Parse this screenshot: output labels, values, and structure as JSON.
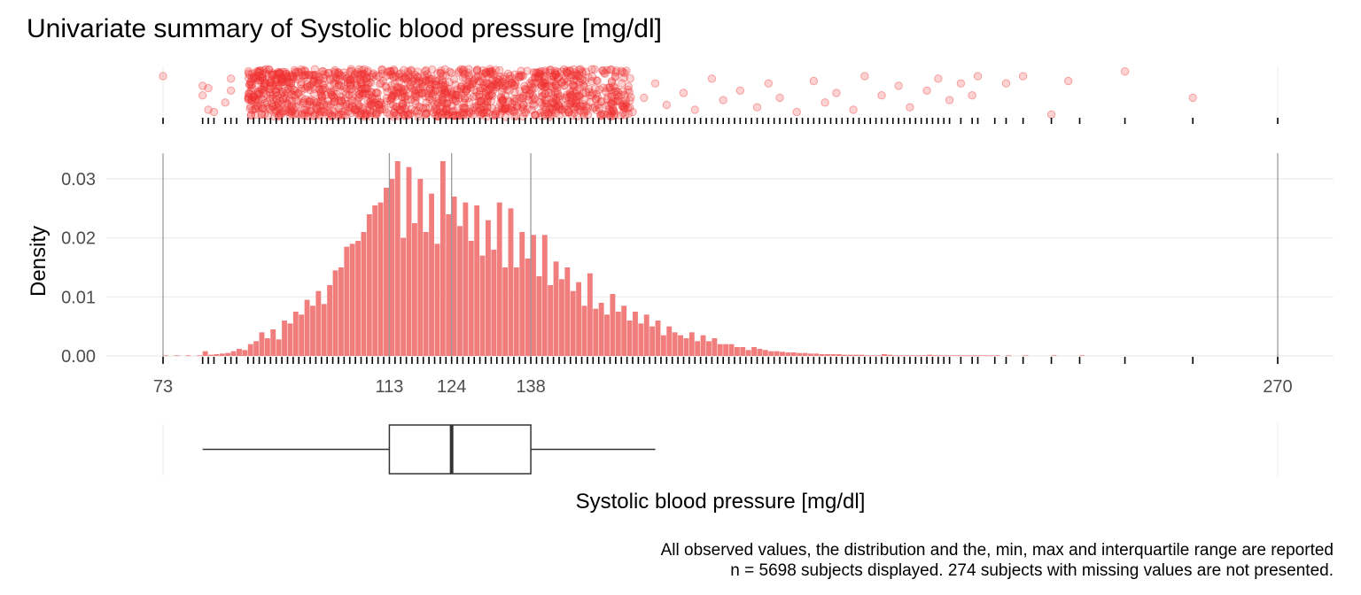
{
  "chart_data": {
    "type": "histogram",
    "title": "Univariate summary of Systolic blood pressure [mg/dl]",
    "xlabel": "Systolic blood pressure [mg/dl]",
    "ylabel": "Density",
    "xlim": [
      73,
      270
    ],
    "ylim": [
      0,
      0.033
    ],
    "y_ticks": [
      0.0,
      0.01,
      0.02,
      0.03
    ],
    "y_tick_labels": [
      "0.00",
      "0.01",
      "0.02",
      "0.03"
    ],
    "x_ticks": [
      73,
      113,
      124,
      138,
      270
    ],
    "x_tick_labels": [
      "73",
      "113",
      "124",
      "138",
      "270"
    ],
    "grid": true,
    "colors": {
      "bars": "#f27d7d",
      "points": "#f03030",
      "box": "#333333",
      "guide": "#9a9a9a"
    },
    "summary": {
      "min": 73,
      "q1": 113,
      "median": 124,
      "q3": 138,
      "max": 270,
      "whisker_low": 80,
      "whisker_high": 160
    },
    "bins": {
      "x": [
        73,
        75,
        77,
        79,
        80,
        81,
        82,
        83,
        84,
        85,
        86,
        87,
        88,
        89,
        90,
        91,
        92,
        93,
        94,
        95,
        96,
        97,
        98,
        99,
        100,
        101,
        102,
        103,
        104,
        105,
        106,
        107,
        108,
        109,
        110,
        111,
        112,
        113,
        114,
        115,
        116,
        117,
        118,
        119,
        120,
        121,
        122,
        123,
        124,
        125,
        126,
        127,
        128,
        129,
        130,
        131,
        132,
        133,
        134,
        135,
        136,
        137,
        138,
        139,
        140,
        141,
        142,
        143,
        144,
        145,
        146,
        147,
        148,
        149,
        150,
        151,
        152,
        153,
        154,
        155,
        156,
        157,
        158,
        159,
        160,
        161,
        162,
        163,
        164,
        165,
        166,
        167,
        168,
        169,
        170,
        171,
        172,
        173,
        174,
        175,
        176,
        177,
        178,
        179,
        180,
        181,
        182,
        183,
        184,
        185,
        186,
        187,
        188,
        189,
        190,
        191,
        192,
        193,
        194,
        195,
        196,
        197,
        198,
        199,
        200,
        201,
        202,
        203,
        204,
        205,
        206,
        207,
        208,
        209,
        210,
        211,
        212,
        213,
        214,
        215,
        216,
        217,
        218,
        219,
        220,
        222,
        225,
        230,
        235
      ],
      "density": [
        0.0001,
        0.0001,
        0.0001,
        0.0001,
        0.0008,
        0.0002,
        0.0003,
        0.0004,
        0.0005,
        0.0008,
        0.0012,
        0.001,
        0.002,
        0.0025,
        0.004,
        0.003,
        0.0045,
        0.0028,
        0.006,
        0.0055,
        0.0075,
        0.007,
        0.0095,
        0.0085,
        0.011,
        0.0088,
        0.012,
        0.0145,
        0.015,
        0.0185,
        0.019,
        0.0195,
        0.021,
        0.024,
        0.0255,
        0.026,
        0.0285,
        0.03,
        0.033,
        0.02,
        0.032,
        0.0225,
        0.03,
        0.021,
        0.0275,
        0.019,
        0.033,
        0.024,
        0.027,
        0.022,
        0.026,
        0.0195,
        0.0255,
        0.017,
        0.023,
        0.018,
        0.026,
        0.015,
        0.025,
        0.015,
        0.021,
        0.0165,
        0.0205,
        0.0135,
        0.0205,
        0.012,
        0.016,
        0.013,
        0.015,
        0.011,
        0.0125,
        0.0085,
        0.014,
        0.008,
        0.009,
        0.007,
        0.0105,
        0.0075,
        0.0085,
        0.006,
        0.0075,
        0.0055,
        0.007,
        0.005,
        0.006,
        0.0035,
        0.005,
        0.004,
        0.0035,
        0.003,
        0.004,
        0.0025,
        0.0035,
        0.0025,
        0.003,
        0.002,
        0.002,
        0.002,
        0.0015,
        0.0015,
        0.001,
        0.0015,
        0.0012,
        0.001,
        0.0008,
        0.0008,
        0.0007,
        0.0006,
        0.0006,
        0.0005,
        0.0005,
        0.0004,
        0.0004,
        0.0003,
        0.0003,
        0.0003,
        0.0003,
        0.0002,
        0.0002,
        0.0002,
        0.0002,
        0.0001,
        0.0001,
        0.0001,
        0.0003,
        0.0002,
        0.0001,
        0.0001,
        0.0001,
        0.0001,
        0.0001,
        0.0001,
        0.0002,
        0.0001,
        0.0001,
        0.0001,
        0.0001,
        0.0001,
        0.0001,
        0.0001,
        0.0001,
        0.0001,
        0.0001,
        0.0001,
        0.0001,
        0.0001,
        0.0001,
        0.0001,
        0.0001,
        0.0001,
        0.0001,
        0.0001,
        0.0001
      ]
    },
    "rug_values": [
      73,
      80,
      81,
      82,
      84,
      85,
      86,
      88,
      89,
      90,
      91,
      92,
      93,
      94,
      95,
      96,
      97,
      98,
      99,
      100,
      101,
      102,
      103,
      104,
      105,
      106,
      107,
      108,
      109,
      110,
      111,
      112,
      113,
      114,
      115,
      116,
      117,
      118,
      119,
      120,
      121,
      122,
      123,
      124,
      125,
      126,
      127,
      128,
      129,
      130,
      131,
      132,
      133,
      134,
      135,
      136,
      137,
      138,
      139,
      140,
      141,
      142,
      143,
      144,
      145,
      146,
      147,
      148,
      149,
      150,
      151,
      152,
      153,
      154,
      155,
      156,
      157,
      158,
      159,
      160,
      161,
      162,
      163,
      164,
      165,
      166,
      167,
      168,
      169,
      170,
      171,
      172,
      173,
      174,
      175,
      176,
      177,
      178,
      179,
      180,
      181,
      182,
      183,
      184,
      185,
      186,
      187,
      188,
      189,
      190,
      191,
      192,
      193,
      194,
      195,
      196,
      197,
      198,
      199,
      200,
      201,
      202,
      203,
      204,
      205,
      206,
      207,
      208,
      209,
      210,
      211,
      212,
      214,
      216,
      217,
      220,
      222,
      225,
      230,
      235,
      243,
      255,
      270
    ],
    "outlier_points": [
      {
        "x": 73,
        "y": 0.15
      },
      {
        "x": 80,
        "y": 0.35
      },
      {
        "x": 81,
        "y": 0.4
      },
      {
        "x": 80,
        "y": 0.55
      },
      {
        "x": 81,
        "y": 0.85
      },
      {
        "x": 82,
        "y": 0.9
      },
      {
        "x": 84,
        "y": 0.7
      },
      {
        "x": 85,
        "y": 0.45
      },
      {
        "x": 85,
        "y": 0.2
      },
      {
        "x": 156,
        "y": 0.9
      },
      {
        "x": 158,
        "y": 0.6
      },
      {
        "x": 160,
        "y": 0.3
      },
      {
        "x": 162,
        "y": 0.75
      },
      {
        "x": 165,
        "y": 0.5
      },
      {
        "x": 167,
        "y": 0.85
      },
      {
        "x": 170,
        "y": 0.2
      },
      {
        "x": 172,
        "y": 0.65
      },
      {
        "x": 175,
        "y": 0.45
      },
      {
        "x": 178,
        "y": 0.8
      },
      {
        "x": 180,
        "y": 0.3
      },
      {
        "x": 182,
        "y": 0.6
      },
      {
        "x": 185,
        "y": 0.9
      },
      {
        "x": 188,
        "y": 0.25
      },
      {
        "x": 190,
        "y": 0.7
      },
      {
        "x": 192,
        "y": 0.5
      },
      {
        "x": 195,
        "y": 0.85
      },
      {
        "x": 197,
        "y": 0.15
      },
      {
        "x": 200,
        "y": 0.55
      },
      {
        "x": 203,
        "y": 0.35
      },
      {
        "x": 205,
        "y": 0.8
      },
      {
        "x": 208,
        "y": 0.45
      },
      {
        "x": 210,
        "y": 0.2
      },
      {
        "x": 212,
        "y": 0.65
      },
      {
        "x": 214,
        "y": 0.3
      },
      {
        "x": 216,
        "y": 0.55
      },
      {
        "x": 217,
        "y": 0.15
      },
      {
        "x": 222,
        "y": 0.3
      },
      {
        "x": 225,
        "y": 0.15
      },
      {
        "x": 230,
        "y": 0.95
      },
      {
        "x": 233,
        "y": 0.25
      },
      {
        "x": 243,
        "y": 0.05
      },
      {
        "x": 255,
        "y": 0.6
      }
    ],
    "caption_line1": "All observed values, the distribution and the, min, max and interquartile range are reported",
    "caption_line2": "n = 5698 subjects displayed. 274 subjects with missing values are not presented."
  }
}
